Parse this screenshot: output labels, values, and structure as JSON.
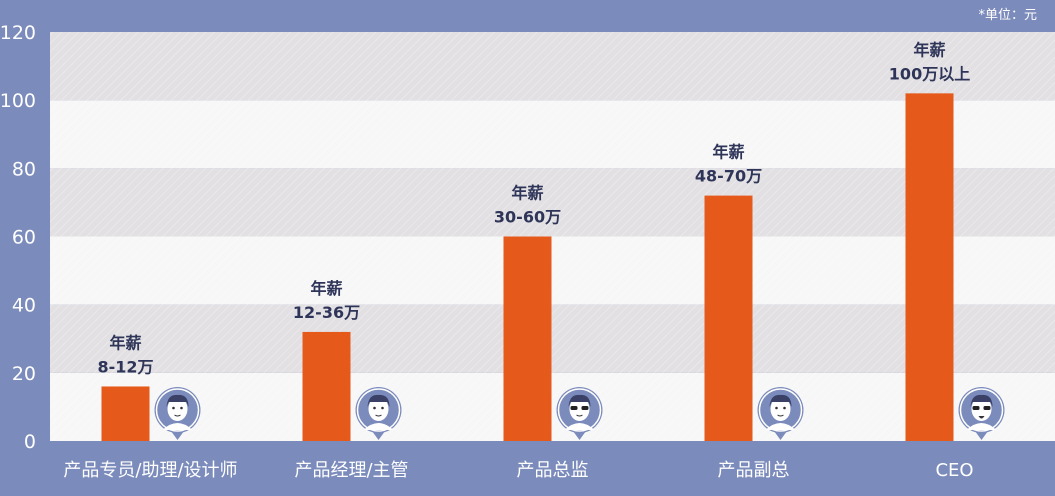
{
  "unit_note": "*单位：元",
  "colors": {
    "background": "#7b8bbb",
    "bar": "#e55a1b",
    "band_dark": "#e2e0e2",
    "band_light": "#f7f7f7",
    "label_text": "#2e3559",
    "avatar_fill": "#7b8bbb"
  },
  "chart_data": {
    "type": "bar",
    "categories": [
      "产品专员/助理/设计师",
      "产品经理/主管",
      "产品总监",
      "产品副总",
      "CEO"
    ],
    "values": [
      16,
      32,
      60,
      72,
      102
    ],
    "data_labels": [
      [
        "年薪",
        "8-12万"
      ],
      [
        "年薪",
        "12-36万"
      ],
      [
        "年薪",
        "30-60万"
      ],
      [
        "年薪",
        "48-70万"
      ],
      [
        "年薪",
        "100万以上"
      ]
    ],
    "avatar_icons": [
      "avatar-side-part-icon",
      "avatar-short-hair-icon",
      "avatar-sunglasses-icon",
      "avatar-flat-top-icon",
      "avatar-goatee-sunglasses-icon"
    ],
    "ylim": [
      0,
      120
    ],
    "yticks": [
      0,
      20,
      40,
      60,
      80,
      100,
      120
    ],
    "grid": true,
    "xlabel": "",
    "ylabel": ""
  }
}
